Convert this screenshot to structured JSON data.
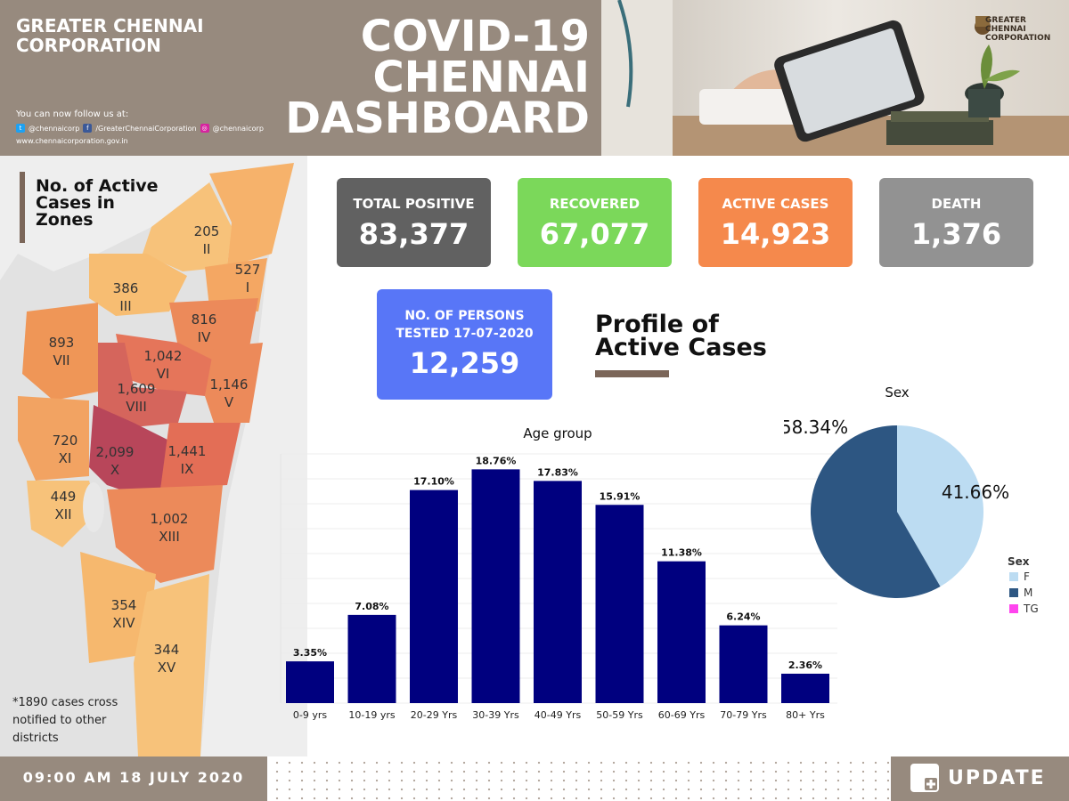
{
  "header": {
    "org_name": "GREATER CHENNAI CORPORATION",
    "follow_text": "You can now follow us at:",
    "social": [
      {
        "icon": "twitter-icon",
        "handle": "@chennaicorp"
      },
      {
        "icon": "facebook-icon",
        "handle": "/GreaterChennaiCorporation"
      },
      {
        "icon": "instagram-icon",
        "handle": "@chennaicorp"
      }
    ],
    "website": "www.chennaicorporation.gov.in",
    "title_lines": [
      "COVID-19",
      "CHENNAI",
      "DASHBOARD"
    ],
    "photo_logo_lines": [
      "GREATER",
      "CHENNAI",
      "CORPORATION"
    ]
  },
  "map": {
    "heading": "No. of Active Cases in Zones",
    "zones": [
      {
        "value": "205",
        "zone": "II"
      },
      {
        "value": "527",
        "zone": "I"
      },
      {
        "value": "386",
        "zone": "III"
      },
      {
        "value": "816",
        "zone": "IV"
      },
      {
        "value": "893",
        "zone": "VII"
      },
      {
        "value": "1,042",
        "zone": "VI"
      },
      {
        "value": "1,609",
        "zone": "VIII"
      },
      {
        "value": "1,146",
        "zone": "V"
      },
      {
        "value": "720",
        "zone": "XI"
      },
      {
        "value": "2,099",
        "zone": "X"
      },
      {
        "value": "1,441",
        "zone": "IX"
      },
      {
        "value": "449",
        "zone": "XII"
      },
      {
        "value": "1,002",
        "zone": "XIII"
      },
      {
        "value": "354",
        "zone": "XIV"
      },
      {
        "value": "344",
        "zone": "XV"
      }
    ],
    "footnote": "*1890 cases cross notified to other districts"
  },
  "stats": {
    "total_positive": {
      "label": "TOTAL POSITIVE",
      "value": "83,377"
    },
    "recovered": {
      "label": "RECOVERED",
      "value": "67,077"
    },
    "active": {
      "label": "ACTIVE CASES",
      "value": "14,923"
    },
    "death": {
      "label": "DEATH",
      "value": "1,376"
    },
    "tested": {
      "label_line1": "NO. OF PERSONS",
      "label_line2": "TESTED 17-07-2020",
      "value": "12,259"
    }
  },
  "profile_title_lines": [
    "Profile of",
    "Active Cases"
  ],
  "colors": {
    "header_bg": "#978a7e",
    "accent_brown": "#7b6659",
    "total_card": "#616161",
    "recovered_card": "#7bd85a",
    "active_card": "#f5894c",
    "death_card": "#929292",
    "tested_card": "#5876f7",
    "bar_color": "#00007f",
    "female": "#bcdcf2",
    "male": "#2d5682",
    "tg": "#ff44ee"
  },
  "chart_data": [
    {
      "type": "bar",
      "title": "Age group",
      "categories": [
        "0-9 yrs",
        "10-19 yrs",
        "20-29 Yrs",
        "30-39 Yrs",
        "40-49 Yrs",
        "50-59 Yrs",
        "60-69 Yrs",
        "70-79 Yrs",
        "80+ Yrs"
      ],
      "values": [
        3.35,
        7.08,
        17.1,
        18.76,
        17.83,
        15.91,
        11.38,
        6.24,
        2.36
      ],
      "data_labels": [
        "3.35%",
        "7.08%",
        "17.10%",
        "18.76%",
        "17.83%",
        "15.91%",
        "11.38%",
        "6.24%",
        "2.36%"
      ],
      "ylim": [
        0,
        20
      ],
      "grid": true
    },
    {
      "type": "pie",
      "title": "Sex",
      "legend_title": "Sex",
      "labels": [
        "F",
        "M",
        "TG"
      ],
      "values": [
        41.66,
        58.34,
        0
      ],
      "data_labels": [
        "41.66%",
        "58.34%",
        ""
      ],
      "colors": [
        "#bcdcf2",
        "#2d5682",
        "#ff44ee"
      ],
      "legend_position": "bottom-right"
    }
  ],
  "footer": {
    "date": "09:00 AM 18 JULY 2020",
    "update_label": "UPDATE"
  }
}
